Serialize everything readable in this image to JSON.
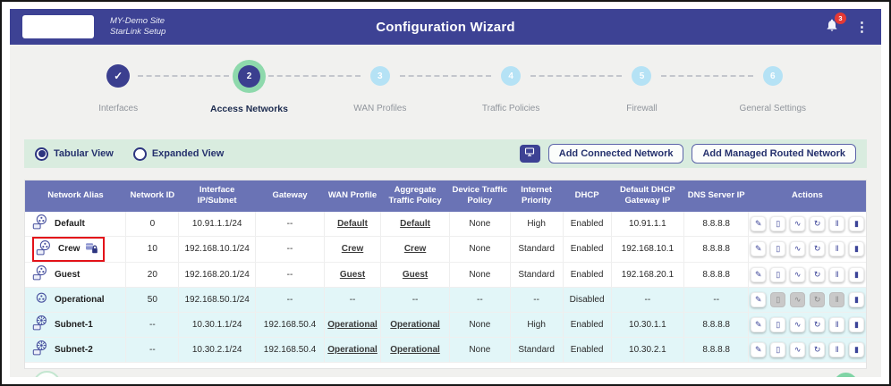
{
  "header": {
    "site_name": "MY-Demo Site",
    "site_subtitle": "StarLink Setup",
    "title": "Configuration Wizard",
    "notification_count": "3"
  },
  "stepper": {
    "steps": [
      {
        "number": "1",
        "label": "Interfaces",
        "state": "completed"
      },
      {
        "number": "2",
        "label": "Access Networks",
        "state": "active"
      },
      {
        "number": "3",
        "label": "WAN Profiles",
        "state": "upcoming"
      },
      {
        "number": "4",
        "label": "Traffic Policies",
        "state": "upcoming"
      },
      {
        "number": "5",
        "label": "Firewall",
        "state": "upcoming"
      },
      {
        "number": "6",
        "label": "General Settings",
        "state": "upcoming"
      }
    ]
  },
  "toolbar": {
    "view_options": [
      {
        "label": "Tabular View",
        "selected": true
      },
      {
        "label": "Expanded View",
        "selected": false
      }
    ],
    "add_connected_label": "Add Connected Network",
    "add_managed_label": "Add Managed Routed Network"
  },
  "table": {
    "columns": [
      "Network Alias",
      "Network ID",
      "Interface IP/Subnet",
      "Gateway",
      "WAN Profile",
      "Aggregate Traffic Policy",
      "Device Traffic Policy",
      "Internet Priority",
      "DHCP",
      "Default DHCP Gateway IP",
      "DNS Server IP",
      "Actions"
    ],
    "action_icons": [
      "edit",
      "mobile",
      "activity",
      "reassign",
      "pause",
      "stop"
    ],
    "rows": [
      {
        "alias": "Default",
        "icon": "access-network",
        "locked": false,
        "highlighted": false,
        "network_id": "0",
        "ip_subnet": "10.91.1.1/24",
        "gateway": "--",
        "wan_profile": "Default",
        "aggregate_policy": "Default",
        "device_policy": "None",
        "priority": "High",
        "dhcp": "Enabled",
        "dhcp_gateway": "10.91.1.1",
        "dns": "8.8.8.8",
        "cyan": false,
        "disabled_actions": []
      },
      {
        "alias": "Crew",
        "icon": "access-network",
        "locked": true,
        "highlighted": true,
        "network_id": "10",
        "ip_subnet": "192.168.10.1/24",
        "gateway": "--",
        "wan_profile": "Crew",
        "aggregate_policy": "Crew",
        "device_policy": "None",
        "priority": "Standard",
        "dhcp": "Enabled",
        "dhcp_gateway": "192.168.10.1",
        "dns": "8.8.8.8",
        "cyan": false,
        "disabled_actions": []
      },
      {
        "alias": "Guest",
        "icon": "access-network",
        "locked": false,
        "highlighted": false,
        "network_id": "20",
        "ip_subnet": "192.168.20.1/24",
        "gateway": "--",
        "wan_profile": "Guest",
        "aggregate_policy": "Guest",
        "device_policy": "None",
        "priority": "Standard",
        "dhcp": "Enabled",
        "dhcp_gateway": "192.168.20.1",
        "dns": "8.8.8.8",
        "cyan": false,
        "disabled_actions": []
      },
      {
        "alias": "Operational",
        "icon": "network",
        "locked": false,
        "highlighted": false,
        "network_id": "50",
        "ip_subnet": "192.168.50.1/24",
        "gateway": "--",
        "wan_profile": "--",
        "aggregate_policy": "--",
        "device_policy": "--",
        "priority": "--",
        "dhcp": "Disabled",
        "dhcp_gateway": "--",
        "dns": "--",
        "cyan": true,
        "disabled_actions": [
          1,
          2,
          3,
          4
        ]
      },
      {
        "alias": "Subnet-1",
        "icon": "subnet",
        "locked": false,
        "highlighted": false,
        "network_id": "--",
        "ip_subnet": "10.30.1.1/24",
        "gateway": "192.168.50.4",
        "wan_profile": "Operational",
        "aggregate_policy": "Operational",
        "device_policy": "None",
        "priority": "High",
        "dhcp": "Enabled",
        "dhcp_gateway": "10.30.1.1",
        "dns": "8.8.8.8",
        "cyan": true,
        "disabled_actions": []
      },
      {
        "alias": "Subnet-2",
        "icon": "subnet",
        "locked": false,
        "highlighted": false,
        "network_id": "--",
        "ip_subnet": "10.30.2.1/24",
        "gateway": "192.168.50.4",
        "wan_profile": "Operational",
        "aggregate_policy": "Operational",
        "device_policy": "None",
        "priority": "Standard",
        "dhcp": "Enabled",
        "dhcp_gateway": "10.30.2.1",
        "dns": "8.8.8.8",
        "cyan": true,
        "disabled_actions": []
      }
    ]
  },
  "colors": {
    "header_bg": "#3d4294",
    "table_header_bg": "#6a73b5",
    "toolbar_bg": "#d9ecdf",
    "active_step_ring": "#8ed9ac",
    "step_done_bg": "#3b3f8f",
    "step_upcoming_bg": "#b5e2f5",
    "row_cyan_bg": "#e2f6f8",
    "highlight_red": "#e31219",
    "badge_red": "#e53935",
    "next_button_green": "#7fd4a5",
    "icon_indigo": "#3b4398"
  }
}
